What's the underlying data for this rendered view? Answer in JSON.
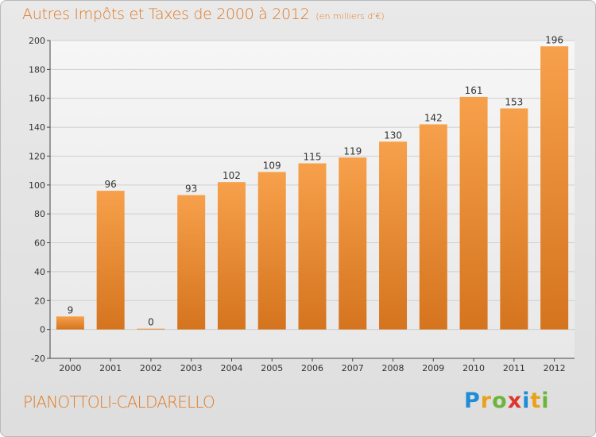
{
  "title": "Autres Impôts et Taxes de 2000 à 2012",
  "subtitle": "(en milliers d'€)",
  "city": "PIANOTTOLI-CALDARELLO",
  "brand": {
    "letters": [
      "P",
      "r",
      "o",
      "x",
      "i",
      "t",
      "i"
    ],
    "colors": [
      "#1e8dd6",
      "#e8a21a",
      "#6bb53c",
      "#e0332e",
      "#1e8dd6",
      "#e8a21a",
      "#6bb53c"
    ]
  },
  "colors": {
    "bar_light": "#f7a04b",
    "bar_dark": "#d5741e",
    "title": "#e07a24"
  },
  "chart_data": {
    "type": "bar",
    "title": "Autres Impôts et Taxes de 2000 à 2012",
    "categories": [
      "2000",
      "2001",
      "2002",
      "2003",
      "2004",
      "2005",
      "2006",
      "2007",
      "2008",
      "2009",
      "2010",
      "2011",
      "2012"
    ],
    "values": [
      9,
      96,
      0,
      93,
      102,
      109,
      115,
      119,
      130,
      142,
      161,
      153,
      196
    ],
    "ylim": [
      -20,
      200
    ],
    "yticks": [
      -20,
      0,
      20,
      40,
      60,
      80,
      100,
      120,
      140,
      160,
      180,
      200
    ],
    "grid": true
  }
}
